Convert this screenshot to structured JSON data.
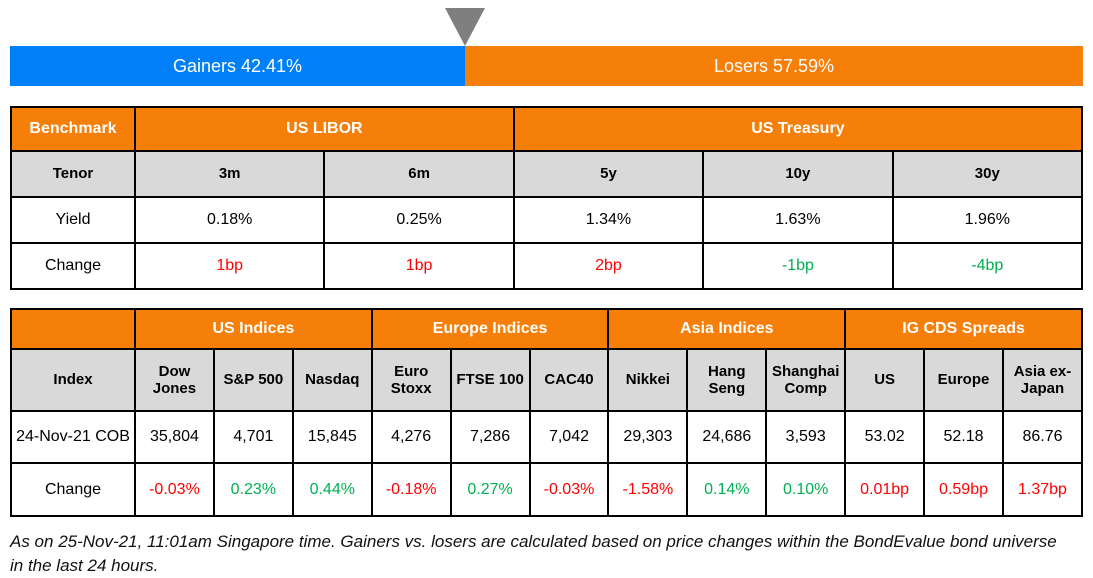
{
  "colors": {
    "gainers_blue": "#0080F8",
    "losers_orange": "#F57F08",
    "header_orange": "#F57F08",
    "subheader_gray": "#D9D9D9",
    "negative_red": "#FF0000",
    "positive_green": "#00B050",
    "marker_gray": "#7F7F7F"
  },
  "gainers_losers": {
    "gainers_label": "Gainers 42.41%",
    "losers_label": "Losers 57.59%",
    "gainers_pct": 42.41,
    "losers_pct": 57.59
  },
  "benchmark_table": {
    "corner_label": "Benchmark",
    "groups": [
      {
        "label": "US LIBOR"
      },
      {
        "label": "US Treasury"
      }
    ],
    "tenor_label": "Tenor",
    "tenors": [
      "3m",
      "6m",
      "5y",
      "10y",
      "30y"
    ],
    "yield_label": "Yield",
    "yields": [
      "0.18%",
      "0.25%",
      "1.34%",
      "1.63%",
      "1.96%"
    ],
    "change_label": "Change",
    "changes": [
      "1bp",
      "1bp",
      "2bp",
      "-1bp",
      "-4bp"
    ],
    "change_tones": [
      "red",
      "red",
      "red",
      "green",
      "green"
    ]
  },
  "indices_table": {
    "corner_label": "Index",
    "groups": [
      {
        "label": "US Indices"
      },
      {
        "label": "Europe Indices"
      },
      {
        "label": "Asia Indices"
      },
      {
        "label": "IG CDS Spreads"
      }
    ],
    "columns": [
      "Dow Jones",
      "S&P 500",
      "Nasdaq",
      "Euro Stoxx",
      "FTSE 100",
      "CAC40",
      "Nikkei",
      "Hang Seng",
      "Shanghai Comp",
      "US",
      "Europe",
      "Asia ex-Japan"
    ],
    "row_label": "24-Nov-21 COB",
    "values": [
      "35,804",
      "4,701",
      "15,845",
      "4,276",
      "7,286",
      "7,042",
      "29,303",
      "24,686",
      "3,593",
      "53.02",
      "52.18",
      "86.76"
    ],
    "change_label": "Change",
    "changes": [
      "-0.03%",
      "0.23%",
      "0.44%",
      "-0.18%",
      "0.27%",
      "-0.03%",
      "-1.58%",
      "0.14%",
      "0.10%",
      "0.01bp",
      "0.59bp",
      "1.37bp"
    ],
    "change_tones": [
      "red",
      "green",
      "green",
      "red",
      "green",
      "red",
      "red",
      "green",
      "green",
      "red",
      "red",
      "red"
    ]
  },
  "footnote": "As on 25-Nov-21, 11:01am Singapore time. Gainers vs. losers are calculated based on price changes within the BondEvalue bond universe in the last 24 hours.",
  "chart_data": [
    {
      "type": "bar",
      "title": "Gainers vs Losers",
      "orientation": "horizontal-stacked",
      "categories": [
        "Gainers",
        "Losers"
      ],
      "values": [
        42.41,
        57.59
      ],
      "unit": "%",
      "colors": [
        "#0080F8",
        "#F57F08"
      ],
      "annotations": [
        "marker triangle at 42.41% boundary"
      ]
    },
    {
      "type": "table",
      "title": "Benchmark yields",
      "columns": [
        "Tenor",
        "3m (US LIBOR)",
        "6m (US LIBOR)",
        "5y (US Treasury)",
        "10y (US Treasury)",
        "30y (US Treasury)"
      ],
      "rows": [
        [
          "Yield",
          "0.18%",
          "0.25%",
          "1.34%",
          "1.63%",
          "1.96%"
        ],
        [
          "Change",
          "1bp",
          "1bp",
          "2bp",
          "-1bp",
          "-4bp"
        ]
      ]
    },
    {
      "type": "table",
      "title": "Indices and IG CDS Spreads",
      "columns": [
        "Index",
        "Dow Jones",
        "S&P 500",
        "Nasdaq",
        "Euro Stoxx",
        "FTSE 100",
        "CAC40",
        "Nikkei",
        "Hang Seng",
        "Shanghai Comp",
        "US",
        "Europe",
        "Asia ex-Japan"
      ],
      "rows": [
        [
          "24-Nov-21 COB",
          "35,804",
          "4,701",
          "15,845",
          "4,276",
          "7,286",
          "7,042",
          "29,303",
          "24,686",
          "3,593",
          "53.02",
          "52.18",
          "86.76"
        ],
        [
          "Change",
          "-0.03%",
          "0.23%",
          "0.44%",
          "-0.18%",
          "0.27%",
          "-0.03%",
          "-1.58%",
          "0.14%",
          "0.10%",
          "0.01bp",
          "0.59bp",
          "1.37bp"
        ]
      ]
    }
  ]
}
